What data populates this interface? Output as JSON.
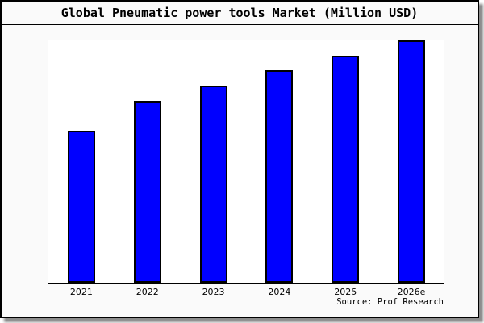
{
  "chart_data": {
    "type": "bar",
    "title": "Global Pneumatic power tools Market (Million USD)",
    "categories": [
      "2021",
      "2022",
      "2023",
      "2024",
      "2025",
      "2026e"
    ],
    "values": [
      62.7,
      75.0,
      81.3,
      87.7,
      93.7,
      100.0
    ],
    "values_note": "No y-axis scale or data labels are shown in the chart; values are relative bar heights with the tallest bar (2026e) = 100.",
    "xlabel": "",
    "ylabel": "",
    "ylim": [
      0,
      100
    ],
    "grid": false,
    "legend": false,
    "bar_color": "#0000ff",
    "bar_border_color": "#000000"
  },
  "source": {
    "label": "Source: Prof Research"
  },
  "colors": {
    "bar": "#0000ff",
    "background": "#fafafa",
    "plot_background": "#ffffff",
    "border": "#000000",
    "shadow": "#999999"
  }
}
